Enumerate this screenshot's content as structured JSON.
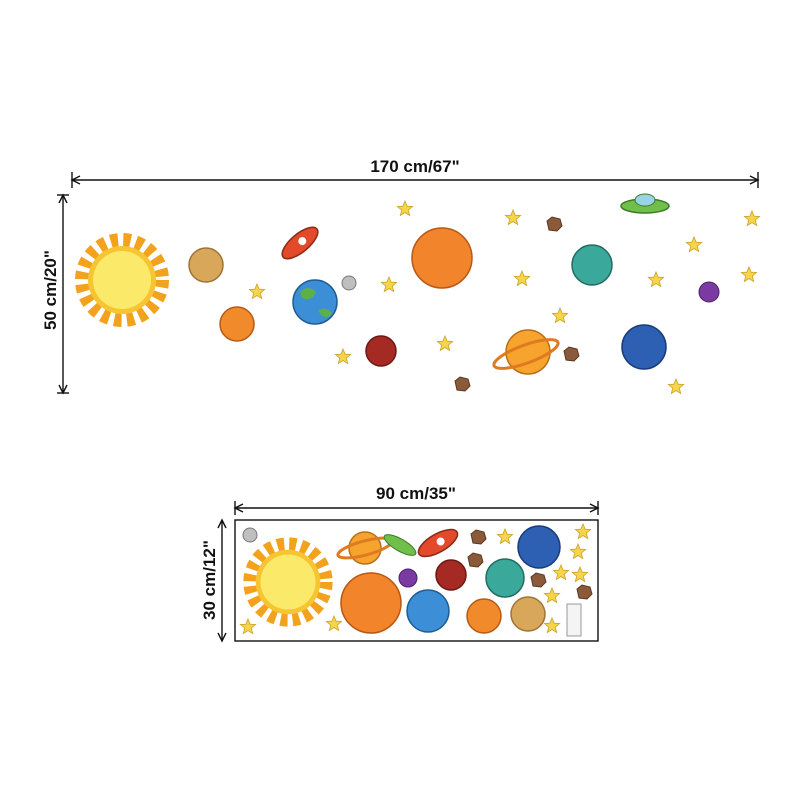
{
  "top": {
    "width_label": "170 cm/67\"",
    "height_label": "50 cm/20\""
  },
  "bottom": {
    "width_label": "90 cm/35\"",
    "height_label": "30 cm/12\""
  }
}
